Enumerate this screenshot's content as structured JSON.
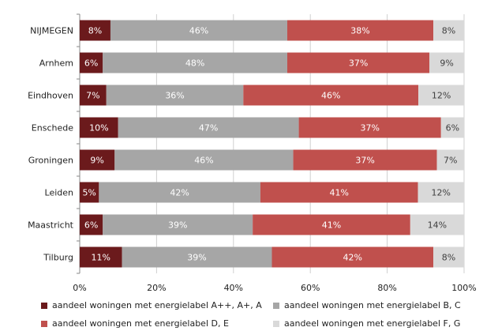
{
  "chart_data": {
    "type": "bar",
    "orientation": "horizontal",
    "stacked": true,
    "categories": [
      "NIJMEGEN",
      "Arnhem",
      "Eindhoven",
      "Enschede",
      "Groningen",
      "Leiden",
      "Maastricht",
      "Tilburg"
    ],
    "series": [
      {
        "name": "aandeel woningen met energielabel A++, A+, A",
        "color": "#6b1a1c",
        "label_color": "#ffffff",
        "values": [
          8,
          6,
          7,
          10,
          9,
          5,
          6,
          11
        ],
        "labels": [
          "8%",
          "6%",
          "7%",
          "10%",
          "9%",
          "5%",
          "6%",
          "11%"
        ]
      },
      {
        "name": "aandeel woningen met energielabel B, C",
        "color": "#a6a6a6",
        "label_color": "#ffffff",
        "values": [
          46,
          48,
          36,
          47,
          46,
          42,
          39,
          39
        ],
        "labels": [
          "46%",
          "48%",
          "36%",
          "47%",
          "46%",
          "42%",
          "39%",
          "39%"
        ]
      },
      {
        "name": "aandeel woningen met energielabel D, E",
        "color": "#c0504d",
        "label_color": "#ffffff",
        "values": [
          38,
          37,
          46,
          37,
          37,
          41,
          41,
          42
        ],
        "labels": [
          "38%",
          "37%",
          "46%",
          "37%",
          "37%",
          "41%",
          "41%",
          "42%"
        ]
      },
      {
        "name": "aandeel woningen met energielabel F, G",
        "color": "#d9d9d9",
        "label_color": "#404040",
        "values": [
          8,
          9,
          12,
          6,
          7,
          12,
          14,
          8
        ],
        "labels": [
          "8%",
          "9%",
          "12%",
          "6%",
          "7%",
          "12%",
          "14%",
          "8%"
        ]
      }
    ],
    "x_ticks": [
      "0%",
      "20%",
      "40%",
      "60%",
      "80%",
      "100%"
    ],
    "xlim": [
      0,
      100
    ],
    "grid": true,
    "legend_position": "bottom"
  }
}
